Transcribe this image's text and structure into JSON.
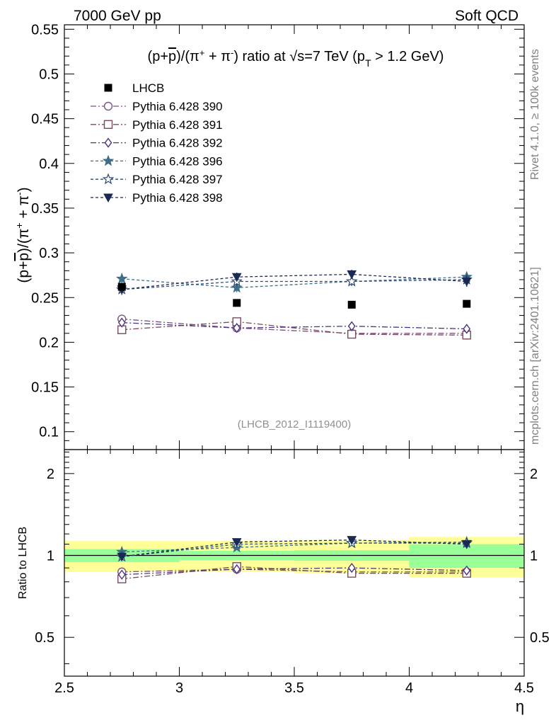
{
  "header": {
    "left": "7000 GeV pp",
    "right": "Soft QCD"
  },
  "side": {
    "rivet": "Rivet 4.1.0, ≥ 100k events",
    "mcplots": "mcplots.cern.ch [arXiv:2401.10621]"
  },
  "chart_data": {
    "type": "line",
    "title": {
      "prefix": "(p+",
      "bar_p": "p",
      "mid": ")/(π",
      "plus1": "+",
      "mid2": " + π",
      "minus1": "-",
      "mid3": ") ratio at ",
      "sqrt": "√",
      "s_text": "s=7 TeV (p",
      "sub_t": "T",
      "suffix": " > 1.2 GeV)"
    },
    "ylabel": {
      "prefix": "(p+",
      "bar_p": "p",
      "mid": ")/(π",
      "plus": "+",
      "mid2": " + π",
      "minus": "-",
      "suffix": ")"
    },
    "ratio_ylabel": "Ratio to LHCB",
    "xlabel": "η",
    "reference": "(LHCB_2012_I1119400)",
    "xlim": [
      2.5,
      4.5
    ],
    "ylim": [
      0.08,
      0.555
    ],
    "ratio_ylim": [
      0.36,
      2.45
    ],
    "x_ticks": [
      {
        "v": 2.5,
        "label": "2.5"
      },
      {
        "v": 3.0,
        "label": "3"
      },
      {
        "v": 3.5,
        "label": "3.5"
      },
      {
        "v": 4.0,
        "label": "4"
      },
      {
        "v": 4.5,
        "label": "4.5"
      }
    ],
    "y_ticks": [
      {
        "v": 0.1,
        "label": "0.1"
      },
      {
        "v": 0.15,
        "label": "0.15"
      },
      {
        "v": 0.2,
        "label": "0.2"
      },
      {
        "v": 0.25,
        "label": "0.25"
      },
      {
        "v": 0.3,
        "label": "0.3"
      },
      {
        "v": 0.35,
        "label": "0.35"
      },
      {
        "v": 0.4,
        "label": "0.4"
      },
      {
        "v": 0.45,
        "label": "0.45"
      },
      {
        "v": 0.5,
        "label": "0.5"
      },
      {
        "v": 0.55,
        "label": "0.55"
      }
    ],
    "ratio_ticks": [
      {
        "v": 0.5,
        "label": "0.5"
      },
      {
        "v": 1.0,
        "label": "1"
      },
      {
        "v": 2.0,
        "label": "2"
      }
    ],
    "x_centers": [
      2.75,
      3.25,
      3.75,
      4.25
    ],
    "bin_edges": [
      2.5,
      3.0,
      3.5,
      4.0,
      4.5
    ],
    "data": {
      "name": "LHCB",
      "values": [
        0.262,
        0.244,
        0.242,
        0.243
      ],
      "ratio_band_inner": [
        0.055,
        0.04,
        0.045,
        0.1
      ],
      "ratio_band_outer": [
        0.13,
        0.13,
        0.14,
        0.17
      ]
    },
    "series": [
      {
        "name": "Pythia 6.428 390",
        "color": "#7a5483",
        "dash": "8,3,2,3",
        "marker": "circle",
        "values": [
          0.226,
          0.216,
          0.21,
          0.21
        ],
        "errors": [
          0.004,
          0.004,
          0.004,
          0.004
        ],
        "ratio": [
          0.87,
          0.89,
          0.87,
          0.87
        ]
      },
      {
        "name": "Pythia 6.428 391",
        "color": "#7c4a5f",
        "dash": "8,3,2,3",
        "marker": "square",
        "values": [
          0.214,
          0.223,
          0.209,
          0.208
        ],
        "errors": [
          0.004,
          0.004,
          0.004,
          0.005
        ],
        "ratio": [
          0.82,
          0.91,
          0.86,
          0.86
        ]
      },
      {
        "name": "Pythia 6.428 392",
        "color": "#4a3580",
        "dash": "8,3,2,3",
        "marker": "diamond",
        "values": [
          0.222,
          0.216,
          0.218,
          0.215
        ],
        "errors": [
          0.004,
          0.004,
          0.004,
          0.004
        ],
        "ratio": [
          0.85,
          0.89,
          0.9,
          0.88
        ]
      },
      {
        "name": "Pythia 6.428 396",
        "color": "#3e6e88",
        "dash": "4,3",
        "marker": "star",
        "values": [
          0.271,
          0.261,
          0.268,
          0.273
        ],
        "errors": [
          0.006,
          0.005,
          0.005,
          0.005
        ],
        "ratio": [
          1.03,
          1.07,
          1.11,
          1.12
        ]
      },
      {
        "name": "Pythia 6.428 397",
        "color": "#2e4b75",
        "dash": "4,3",
        "marker": "star-open",
        "values": [
          0.259,
          0.268,
          0.268,
          0.27
        ],
        "errors": [
          0.005,
          0.005,
          0.005,
          0.005
        ],
        "ratio": [
          0.99,
          1.1,
          1.11,
          1.11
        ]
      },
      {
        "name": "Pythia 6.428 398",
        "color": "#1b2a55",
        "dash": "4,3",
        "marker": "triangle-down",
        "values": [
          0.259,
          0.273,
          0.276,
          0.268
        ],
        "errors": [
          0.006,
          0.005,
          0.005,
          0.006
        ],
        "ratio": [
          0.99,
          1.12,
          1.14,
          1.1
        ]
      }
    ]
  }
}
